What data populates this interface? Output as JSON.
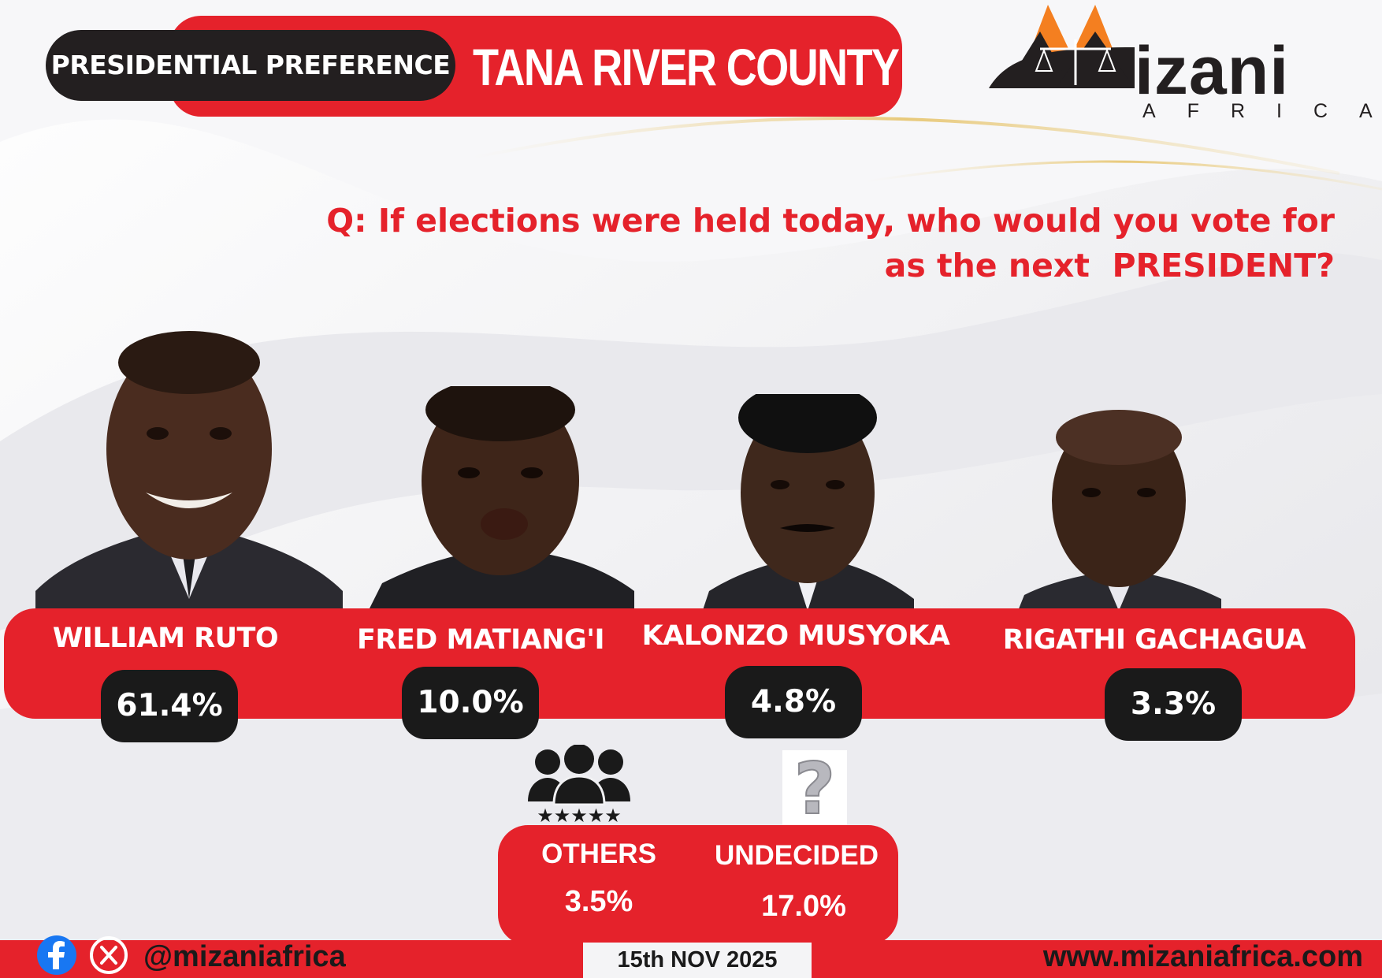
{
  "header": {
    "label": "PRESIDENTIAL PREFERENCE",
    "county": "TANA RIVER COUNTY"
  },
  "logo": {
    "word": "izani",
    "sub": "AFRICA"
  },
  "question": {
    "line1": "Q: If elections were held today, who would you vote for",
    "line2": "as the next  PRESIDENT?"
  },
  "candidates": [
    {
      "name": "WILLIAM RUTO",
      "percent": "61.4%",
      "value": 61.4
    },
    {
      "name": "FRED MATIANG'I",
      "percent": "10.0%",
      "value": 10.0
    },
    {
      "name": "KALONZO MUSYOKA",
      "percent": "4.8%",
      "value": 4.8
    },
    {
      "name": "RIGATHI GACHAGUA",
      "percent": "3.3%",
      "value": 3.3
    }
  ],
  "others": {
    "label": "OTHERS",
    "percent": "3.5%",
    "value": 3.5
  },
  "undecided": {
    "label": "UNDECIDED",
    "percent": "17.0%",
    "value": 17.0
  },
  "footer": {
    "handle": "@mizaniafrica",
    "date": "15th NOV 2025",
    "website": "www.mizaniafrica.com"
  },
  "icons": {
    "facebook": "facebook-icon",
    "x": "x-icon",
    "people": "people-group-icon",
    "question": "question-mark-icon"
  },
  "colors": {
    "red": "#e5222b",
    "black": "#231f20",
    "orange": "#f47f20"
  }
}
